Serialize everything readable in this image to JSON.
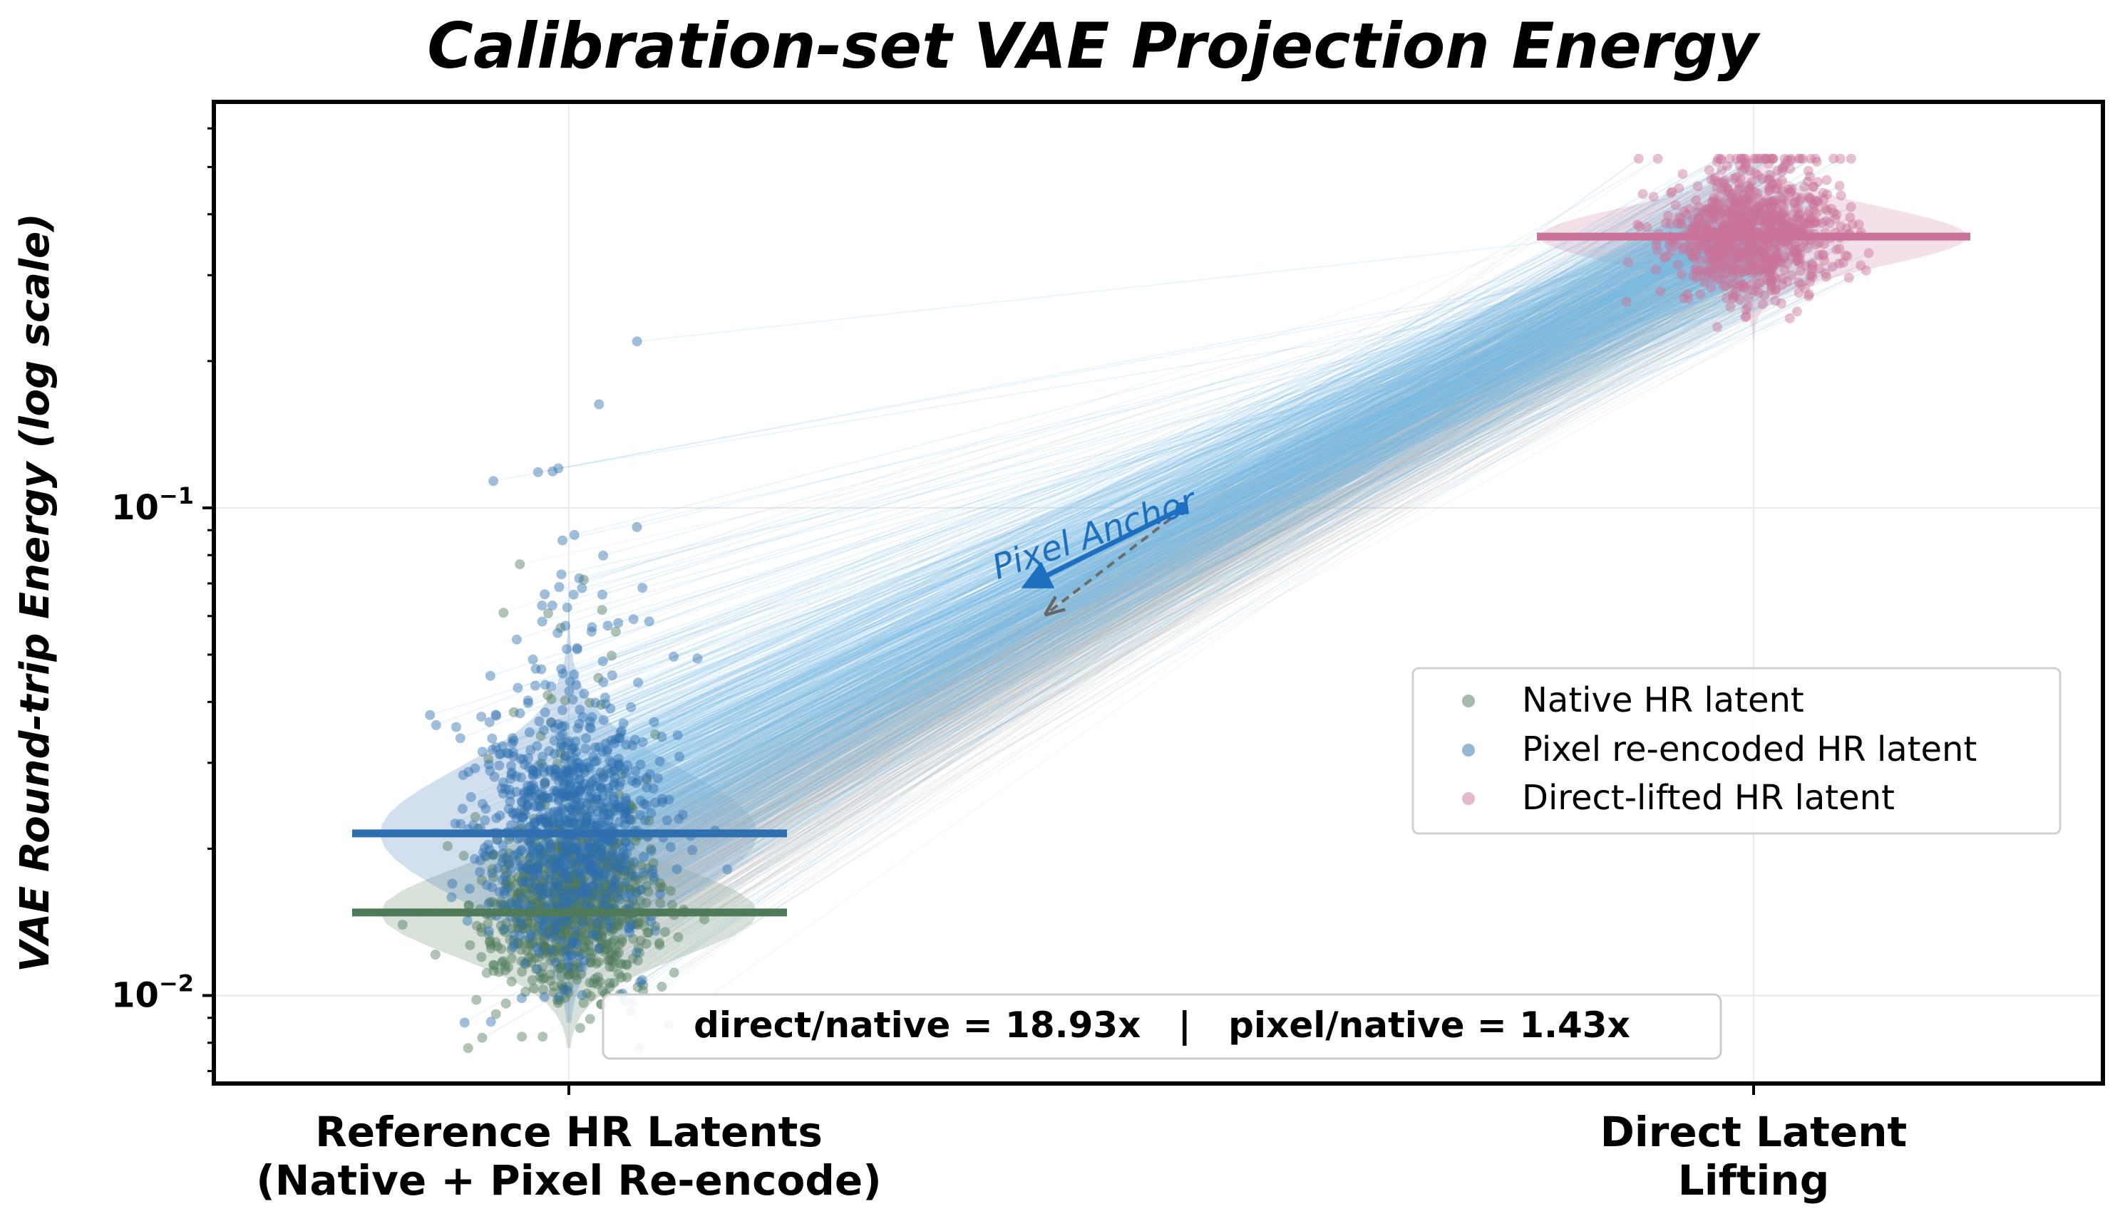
{
  "chart_data": {
    "type": "scatter",
    "title": "Calibration-set VAE Projection Energy",
    "ylabel": "VAE Round-trip Energy (log scale)",
    "xlabel": "",
    "yscale": "log",
    "ylim": [
      0.0066,
      0.68
    ],
    "yticks": [
      {
        "value": 0.1,
        "base": "10",
        "exp": "−1"
      },
      {
        "value": 0.01,
        "base": "10",
        "exp": "−2"
      }
    ],
    "categories": [
      {
        "line1": "Reference HR Latents",
        "line2": "(Native + Pixel Re-encode)"
      },
      {
        "line1": "Direct Latent",
        "line2": "Lifting"
      }
    ],
    "grid": true,
    "legend_position": "center-right",
    "series": [
      {
        "name": "Native HR latent",
        "category": 0,
        "color": "#4f7a5a",
        "median": 0.0148,
        "spread_sd_log10": 0.09,
        "range": [
          0.0078,
          0.19
        ],
        "points": 900
      },
      {
        "name": "Pixel re-encoded HR latent",
        "category": 0,
        "color": "#2f6fb0",
        "median": 0.0215,
        "spread_sd_log10": 0.13,
        "range": [
          0.0088,
          0.24
        ],
        "points": 900
      },
      {
        "name": "Direct-lifted HR latent",
        "category": 1,
        "color": "#c9739a",
        "median": 0.36,
        "spread_sd_log10": 0.06,
        "range": [
          0.21,
          0.52
        ],
        "points": 900
      }
    ],
    "annotations": {
      "arrow_label": "Pixel Anchor",
      "ratio_text": "direct/native = 18.93x   |   pixel/native = 1.43x"
    }
  }
}
